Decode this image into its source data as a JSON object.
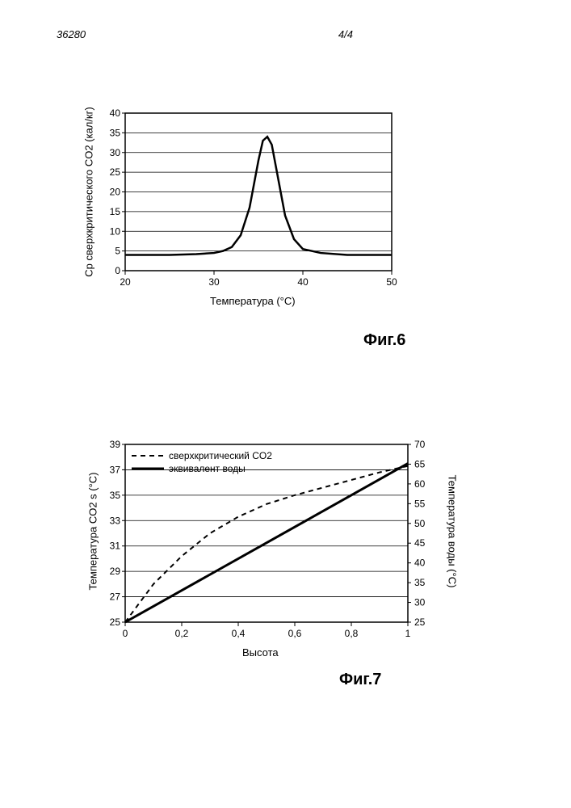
{
  "header": {
    "doc_id": "36280",
    "page_num": "4/4"
  },
  "chart6": {
    "type": "line",
    "title_fontsize": 13,
    "xlabel": "Температура (°C)",
    "ylabel": "Cp сверхкритического CO2 (кал/кг)",
    "xlim": [
      20,
      50
    ],
    "ylim": [
      0,
      40
    ],
    "xticks": [
      20,
      30,
      40,
      50
    ],
    "yticks": [
      0,
      5,
      10,
      15,
      20,
      25,
      30,
      35,
      40
    ],
    "x": [
      20,
      25,
      28,
      30,
      31,
      32,
      33,
      34,
      35,
      35.5,
      36,
      36.5,
      37,
      38,
      39,
      40,
      42,
      45,
      50
    ],
    "y": [
      4,
      4,
      4.2,
      4.5,
      5,
      6,
      9,
      16,
      28,
      33,
      34,
      32,
      26,
      14,
      8,
      5.5,
      4.5,
      4,
      4
    ],
    "line_color": "#000000",
    "line_width": 2.5,
    "grid_color": "#000000",
    "border_color": "#000000",
    "background_color": "#ffffff",
    "fig_label": "Фиг.6"
  },
  "chart7": {
    "type": "line",
    "xlabel": "Высота",
    "ylabel_left": "Температура CO2 s (°C)",
    "ylabel_right": "Температура воды (°C)",
    "xlim": [
      0,
      1
    ],
    "ylim_left": [
      25,
      39
    ],
    "ylim_right": [
      25,
      70
    ],
    "xticks": [
      0,
      0.2,
      0.4,
      0.6,
      0.8,
      1
    ],
    "xtick_labels": [
      "0",
      "0,2",
      "0,4",
      "0,6",
      "0,8",
      "1"
    ],
    "yticks_left": [
      25,
      27,
      29,
      31,
      33,
      35,
      37,
      39
    ],
    "yticks_right": [
      25,
      30,
      35,
      40,
      45,
      50,
      55,
      60,
      65,
      70
    ],
    "series": [
      {
        "name": "сверхкритический CO2",
        "x": [
          0,
          0.1,
          0.2,
          0.3,
          0.4,
          0.5,
          0.6,
          0.7,
          0.8,
          0.9,
          1
        ],
        "y_left": [
          25,
          28,
          30.2,
          32,
          33.3,
          34.3,
          35,
          35.6,
          36.2,
          36.8,
          37.3
        ],
        "color": "#000000",
        "dash": "6,5",
        "width": 2
      },
      {
        "name": "эквивалент воды",
        "x": [
          0,
          1
        ],
        "y_left": [
          25,
          37.5
        ],
        "color": "#000000",
        "dash": "",
        "width": 3
      }
    ],
    "grid_color": "#000000",
    "border_color": "#000000",
    "background_color": "#ffffff",
    "fig_label": "Фиг.7",
    "legend_labels": [
      "сверхкритический CO2",
      "эквивалент воды"
    ]
  }
}
